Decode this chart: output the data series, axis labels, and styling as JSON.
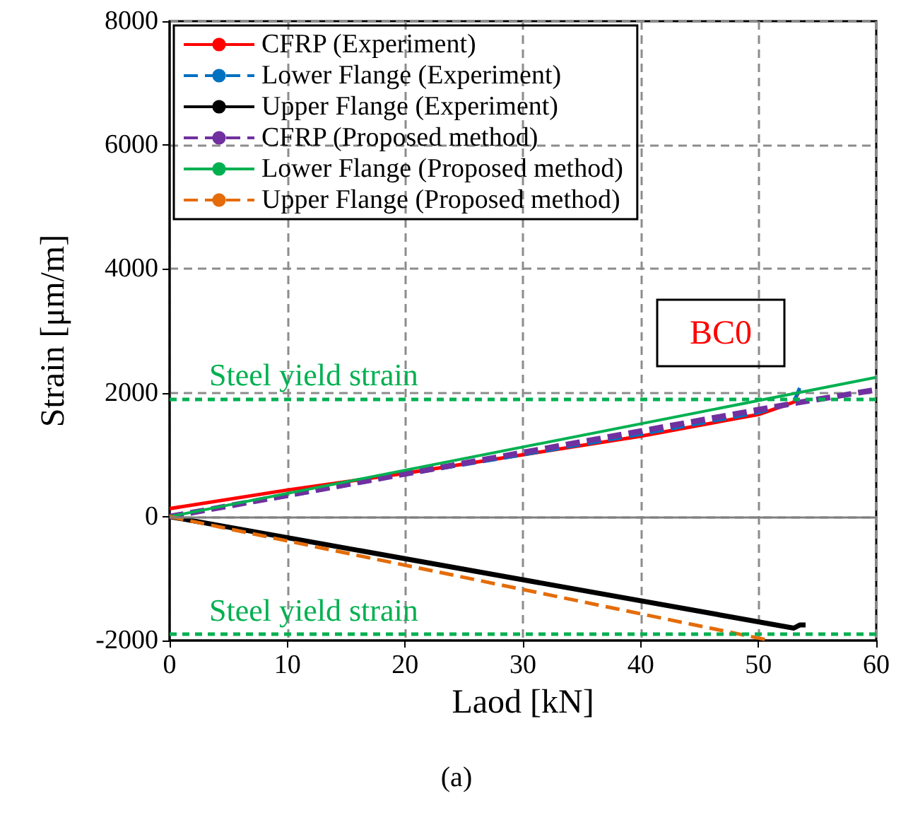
{
  "chart_data": {
    "type": "line",
    "xlabel": "Laod [kN]",
    "ylabel": "Strain [μm/m]",
    "xlim": [
      0,
      60
    ],
    "xticks": [
      0,
      10,
      20,
      30,
      40,
      50,
      60
    ],
    "ylim": [
      -2000,
      8000
    ],
    "yticks": [
      -2000,
      0,
      2000,
      4000,
      6000,
      8000
    ],
    "grid": true,
    "legend": "top left",
    "marker": "none",
    "series": [
      {
        "name": "CFRP (Experiment)",
        "color": "#ff0000",
        "line_style": "solid",
        "x": [
          0,
          10,
          20,
          30,
          40,
          50,
          52,
          53,
          53.5
        ],
        "values": [
          130,
          430,
          700,
          1000,
          1300,
          1650,
          1780,
          1850,
          2050
        ]
      },
      {
        "name": "Lower Flange (Experiment)",
        "color": "#0070c0",
        "line_style": "dashed",
        "x": [
          0,
          10,
          20,
          30,
          40,
          50,
          53,
          53.5
        ],
        "values": [
          0,
          330,
          680,
          1000,
          1330,
          1680,
          1850,
          2080
        ]
      },
      {
        "name": "Upper Flange (Experiment)",
        "color": "#000000",
        "line_style": "solid",
        "x": [
          0,
          53,
          53.5,
          54
        ],
        "values": [
          0,
          -1800,
          -1750,
          -1750
        ]
      },
      {
        "name": "CFRP (Proposed method)",
        "color": "#7030a0",
        "line_style": "dashed",
        "x": [
          0,
          53,
          60
        ],
        "values": [
          0,
          1830,
          2050
        ]
      },
      {
        "name": "Lower Flange (Proposed method)",
        "color": "#00b050",
        "line_style": "solid",
        "x": [
          0,
          60
        ],
        "values": [
          0,
          2250
        ]
      },
      {
        "name": "Upper Flange (Proposed method)",
        "color": "#e46c0a",
        "line_style": "dashed",
        "x": [
          0,
          51
        ],
        "values": [
          0,
          -2000
        ]
      }
    ],
    "ref_lines": [
      {
        "axis": "y",
        "value": 0,
        "label": null,
        "color": "#808080",
        "line_style": "solid"
      },
      {
        "axis": "y",
        "value": 1900,
        "label": "Steel yield strain",
        "color": "#00b050",
        "line_style": "dashed"
      },
      {
        "axis": "y",
        "value": -1900,
        "label": "Steel yield strain",
        "color": "#00b050",
        "line_style": "dashed"
      }
    ],
    "annotations": [
      "BC0",
      "(a)"
    ]
  }
}
